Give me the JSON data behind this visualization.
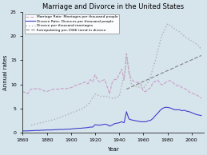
{
  "title": "Marriage and Divorce in the United States",
  "xlabel": "Year",
  "ylabel": "Annual rates",
  "xlim": [
    1860,
    2010
  ],
  "ylim": [
    0,
    25
  ],
  "yticks": [
    0,
    5,
    10,
    15,
    20,
    25
  ],
  "xticks": [
    1860,
    1880,
    1900,
    1920,
    1940,
    1960,
    1980,
    2000
  ],
  "bg_color": "#d6e4ec",
  "legend_labels": [
    "Marriage Rate: Marriages per thousand people",
    "Divorce Rate: Divorces per thousand people",
    "Divorce per thousand marriages",
    "Extrapolating pre-1946 trend in divorce"
  ],
  "marriage_rate": {
    "years": [
      1860,
      1862,
      1864,
      1866,
      1868,
      1870,
      1872,
      1874,
      1876,
      1878,
      1880,
      1882,
      1884,
      1886,
      1888,
      1890,
      1892,
      1894,
      1896,
      1898,
      1900,
      1902,
      1904,
      1906,
      1908,
      1910,
      1912,
      1914,
      1916,
      1918,
      1920,
      1922,
      1924,
      1926,
      1928,
      1930,
      1932,
      1934,
      1936,
      1938,
      1940,
      1942,
      1944,
      1946,
      1948,
      1950,
      1952,
      1954,
      1956,
      1958,
      1960,
      1962,
      1964,
      1966,
      1968,
      1970,
      1972,
      1974,
      1976,
      1978,
      1980,
      1982,
      1984,
      1986,
      1988,
      1990,
      1992,
      1994,
      1996,
      1998,
      2000,
      2002,
      2004,
      2006,
      2008
    ],
    "values": [
      8.5,
      8.3,
      8.0,
      8.8,
      9.1,
      9.0,
      9.2,
      9.0,
      8.8,
      8.6,
      8.5,
      8.7,
      8.9,
      9.0,
      9.0,
      9.0,
      9.2,
      9.0,
      9.1,
      9.2,
      9.3,
      9.5,
      9.8,
      10.0,
      10.1,
      10.3,
      10.5,
      10.1,
      11.0,
      10.5,
      12.0,
      10.8,
      10.5,
      10.8,
      11.0,
      9.5,
      8.0,
      10.3,
      11.0,
      11.0,
      12.1,
      13.2,
      10.9,
      16.4,
      12.4,
      11.1,
      10.6,
      10.4,
      10.4,
      10.0,
      8.5,
      8.5,
      9.0,
      9.3,
      10.4,
      10.6,
      10.9,
      10.1,
      9.9,
      10.3,
      10.6,
      10.8,
      10.5,
      10.0,
      9.7,
      9.8,
      9.3,
      9.1,
      8.9,
      8.4,
      8.2,
      8.0,
      7.8,
      7.5,
      7.1
    ]
  },
  "divorce_rate": {
    "years": [
      1860,
      1862,
      1864,
      1866,
      1868,
      1870,
      1872,
      1874,
      1876,
      1878,
      1880,
      1882,
      1884,
      1886,
      1888,
      1890,
      1892,
      1894,
      1896,
      1898,
      1900,
      1902,
      1904,
      1906,
      1908,
      1910,
      1912,
      1914,
      1916,
      1918,
      1920,
      1922,
      1924,
      1926,
      1928,
      1930,
      1932,
      1934,
      1936,
      1938,
      1940,
      1942,
      1944,
      1946,
      1948,
      1950,
      1952,
      1954,
      1956,
      1958,
      1960,
      1962,
      1964,
      1966,
      1968,
      1970,
      1972,
      1974,
      1976,
      1978,
      1980,
      1982,
      1984,
      1986,
      1988,
      1990,
      1992,
      1994,
      1996,
      1998,
      2000,
      2002,
      2004,
      2006,
      2008
    ],
    "values": [
      0.3,
      0.3,
      0.3,
      0.35,
      0.35,
      0.4,
      0.4,
      0.4,
      0.45,
      0.45,
      0.5,
      0.5,
      0.5,
      0.55,
      0.55,
      0.6,
      0.6,
      0.6,
      0.65,
      0.65,
      0.7,
      0.75,
      0.8,
      0.85,
      0.85,
      0.9,
      0.95,
      1.0,
      1.1,
      1.1,
      1.6,
      1.5,
      1.5,
      1.6,
      1.7,
      1.6,
      1.3,
      1.5,
      1.8,
      1.9,
      2.0,
      2.2,
      2.0,
      4.3,
      2.8,
      2.6,
      2.5,
      2.4,
      2.3,
      2.2,
      2.2,
      2.2,
      2.4,
      2.5,
      2.9,
      3.5,
      4.0,
      4.6,
      5.0,
      5.2,
      5.2,
      5.1,
      4.9,
      4.7,
      4.7,
      4.7,
      4.5,
      4.6,
      4.4,
      4.3,
      4.1,
      3.9,
      3.7,
      3.6,
      3.5
    ]
  },
  "divorce_per_marriage": {
    "years": [
      1867,
      1870,
      1875,
      1880,
      1885,
      1890,
      1895,
      1900,
      1905,
      1910,
      1915,
      1920,
      1925,
      1930,
      1935,
      1940,
      1945,
      1946,
      1950,
      1955,
      1960,
      1965,
      1970,
      1975,
      1980,
      1985,
      1990,
      1995,
      2000,
      2005,
      2008
    ],
    "values": [
      1.5,
      1.7,
      2.0,
      2.3,
      2.6,
      3.0,
      3.5,
      4.0,
      4.5,
      5.0,
      6.0,
      8.0,
      7.5,
      7.5,
      7.0,
      7.5,
      13.0,
      16.2,
      10.0,
      9.5,
      9.2,
      10.8,
      15.0,
      20.0,
      22.6,
      21.7,
      20.9,
      19.8,
      19.0,
      18.2,
      17.3
    ]
  },
  "extrapolation": {
    "years": [
      1946,
      2008
    ],
    "values": [
      9.0,
      16.0
    ]
  },
  "marriage_color": "#c8a0c8",
  "divorce_color": "#4040cc",
  "dpm_color": "#b0b0b0",
  "extrap_color": "#808080"
}
